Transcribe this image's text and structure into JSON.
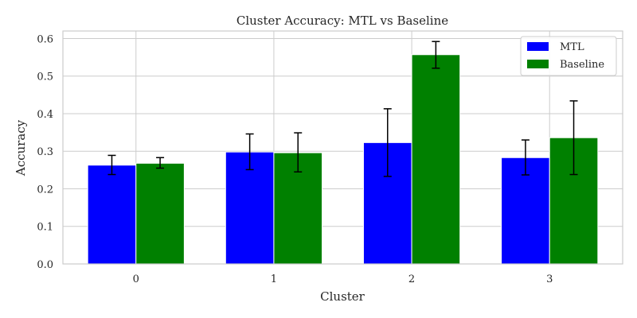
{
  "chart_data": {
    "type": "bar",
    "title": "Cluster Accuracy: MTL vs Baseline",
    "xlabel": "Cluster",
    "ylabel": "Accuracy",
    "categories": [
      "0",
      "1",
      "2",
      "3"
    ],
    "ylim": [
      0,
      0.62
    ],
    "yticks": [
      "0.0",
      "0.1",
      "0.2",
      "0.3",
      "0.4",
      "0.5",
      "0.6"
    ],
    "grid": true,
    "legend_position": "top-right",
    "series": [
      {
        "name": "MTL",
        "color": "#0000ff",
        "values": [
          0.263,
          0.298,
          0.323,
          0.283
        ],
        "error_low": [
          0.238,
          0.251,
          0.233,
          0.237
        ],
        "error_high": [
          0.289,
          0.346,
          0.413,
          0.33
        ]
      },
      {
        "name": "Baseline",
        "color": "#008000",
        "values": [
          0.268,
          0.296,
          0.557,
          0.336
        ],
        "error_low": [
          0.255,
          0.245,
          0.521,
          0.238
        ],
        "error_high": [
          0.283,
          0.349,
          0.592,
          0.434
        ]
      }
    ]
  }
}
